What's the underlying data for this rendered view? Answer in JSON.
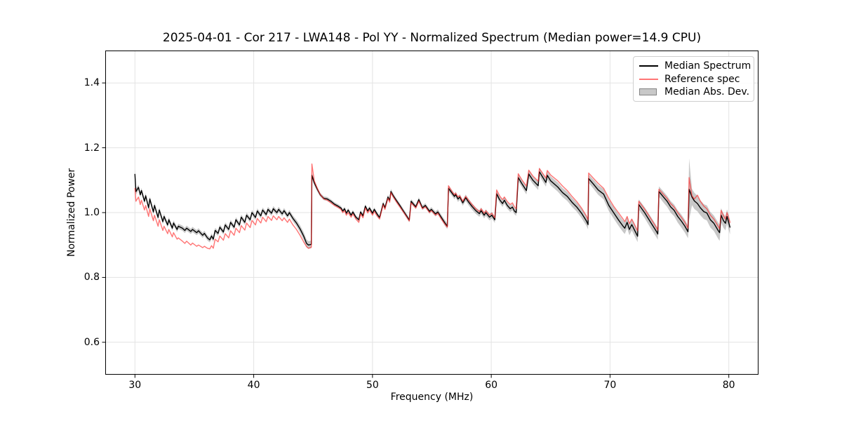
{
  "chart_data": {
    "type": "line",
    "title": "2025-04-01 - Cor 217 - LWA148 - Pol YY - Normalized Spectrum (Median power=14.9 CPU)",
    "xlabel": "Frequency (MHz)",
    "ylabel": "Normalized Power",
    "xlim": [
      27.5,
      82.5
    ],
    "ylim": [
      0.5,
      1.5
    ],
    "x_tick_values": [
      30,
      40,
      50,
      60,
      70,
      80
    ],
    "x_tick_labels": [
      "30",
      "40",
      "50",
      "60",
      "70",
      "80"
    ],
    "y_tick_values": [
      0.6,
      0.8,
      1.0,
      1.2,
      1.4
    ],
    "y_tick_labels": [
      "0.6",
      "0.8",
      "1.0",
      "1.2",
      "1.4"
    ],
    "grid": true,
    "legend_position": "upper right",
    "colors": {
      "median": "#000000",
      "reference": "#ff2b2b",
      "reference_opacity": 0.65,
      "band": "#7d7d7d",
      "band_opacity": 0.42,
      "grid": "#e3e3e3",
      "spine": "#000000"
    },
    "series": [
      {
        "name": "Median Spectrum",
        "kind": "line",
        "column": "median"
      },
      {
        "name": "Reference spec",
        "kind": "line",
        "column": "reference"
      },
      {
        "name": "Median Abs. Dev.",
        "kind": "band",
        "column": "mad"
      }
    ],
    "columns": [
      "freq_mhz",
      "median",
      "reference",
      "mad_halfwidth"
    ],
    "points": [
      [
        30.0,
        1.118,
        1.075,
        0.012
      ],
      [
        30.08,
        1.065,
        1.035,
        0.01
      ],
      [
        30.3,
        1.078,
        1.048,
        0.008
      ],
      [
        30.45,
        1.055,
        1.025,
        0.008
      ],
      [
        30.55,
        1.068,
        1.038,
        0.008
      ],
      [
        30.8,
        1.035,
        1.008,
        0.008
      ],
      [
        30.9,
        1.052,
        1.022,
        0.008
      ],
      [
        31.15,
        1.015,
        0.988,
        0.008
      ],
      [
        31.25,
        1.042,
        1.012,
        0.008
      ],
      [
        31.55,
        1.002,
        0.975,
        0.008
      ],
      [
        31.65,
        1.022,
        0.992,
        0.008
      ],
      [
        31.95,
        0.985,
        0.958,
        0.008
      ],
      [
        32.05,
        1.008,
        0.978,
        0.008
      ],
      [
        32.35,
        0.972,
        0.945,
        0.008
      ],
      [
        32.45,
        0.988,
        0.958,
        0.008
      ],
      [
        32.75,
        0.962,
        0.935,
        0.008
      ],
      [
        32.85,
        0.978,
        0.948,
        0.008
      ],
      [
        33.15,
        0.952,
        0.925,
        0.008
      ],
      [
        33.25,
        0.968,
        0.938,
        0.008
      ],
      [
        33.55,
        0.948,
        0.918,
        0.008
      ],
      [
        33.65,
        0.958,
        0.922,
        0.008
      ],
      [
        34.0,
        0.952,
        0.912,
        0.008
      ],
      [
        34.2,
        0.945,
        0.905,
        0.008
      ],
      [
        34.35,
        0.952,
        0.912,
        0.008
      ],
      [
        34.7,
        0.942,
        0.9,
        0.008
      ],
      [
        34.85,
        0.948,
        0.906,
        0.008
      ],
      [
        35.2,
        0.938,
        0.896,
        0.008
      ],
      [
        35.35,
        0.944,
        0.9,
        0.008
      ],
      [
        35.7,
        0.93,
        0.892,
        0.008
      ],
      [
        35.85,
        0.936,
        0.896,
        0.008
      ],
      [
        36.1,
        0.922,
        0.89,
        0.008
      ],
      [
        36.3,
        0.916,
        0.888,
        0.008
      ],
      [
        36.45,
        0.928,
        0.898,
        0.008
      ],
      [
        36.6,
        0.918,
        0.89,
        0.008
      ],
      [
        36.75,
        0.945,
        0.918,
        0.008
      ],
      [
        37.0,
        0.936,
        0.91,
        0.008
      ],
      [
        37.15,
        0.955,
        0.928,
        0.008
      ],
      [
        37.45,
        0.94,
        0.915,
        0.008
      ],
      [
        37.6,
        0.962,
        0.935,
        0.008
      ],
      [
        37.9,
        0.948,
        0.922,
        0.008
      ],
      [
        38.05,
        0.97,
        0.944,
        0.008
      ],
      [
        38.35,
        0.955,
        0.93,
        0.008
      ],
      [
        38.5,
        0.978,
        0.952,
        0.008
      ],
      [
        38.8,
        0.962,
        0.938,
        0.008
      ],
      [
        38.95,
        0.986,
        0.96,
        0.008
      ],
      [
        39.25,
        0.97,
        0.946,
        0.008
      ],
      [
        39.4,
        0.992,
        0.968,
        0.008
      ],
      [
        39.7,
        0.978,
        0.954,
        0.008
      ],
      [
        39.85,
        1.0,
        0.976,
        0.008
      ],
      [
        40.15,
        0.985,
        0.962,
        0.008
      ],
      [
        40.3,
        1.005,
        0.982,
        0.008
      ],
      [
        40.6,
        0.99,
        0.968,
        0.008
      ],
      [
        40.75,
        1.008,
        0.986,
        0.008
      ],
      [
        41.05,
        0.994,
        0.972,
        0.008
      ],
      [
        41.2,
        1.01,
        0.988,
        0.008
      ],
      [
        41.5,
        0.998,
        0.976,
        0.008
      ],
      [
        41.65,
        1.012,
        0.99,
        0.008
      ],
      [
        41.95,
        1.0,
        0.978,
        0.008
      ],
      [
        42.1,
        1.01,
        0.988,
        0.008
      ],
      [
        42.4,
        0.996,
        0.975,
        0.008
      ],
      [
        42.55,
        1.006,
        0.984,
        0.008
      ],
      [
        42.85,
        0.99,
        0.97,
        0.008
      ],
      [
        43.0,
        1.0,
        0.98,
        0.008
      ],
      [
        43.3,
        0.982,
        0.962,
        0.009
      ],
      [
        43.6,
        0.968,
        0.948,
        0.01
      ],
      [
        43.9,
        0.95,
        0.93,
        0.011
      ],
      [
        44.2,
        0.928,
        0.91,
        0.012
      ],
      [
        44.45,
        0.905,
        0.895,
        0.012
      ],
      [
        44.6,
        0.9,
        0.89,
        0.012
      ],
      [
        44.85,
        0.902,
        0.893,
        0.012
      ],
      [
        44.9,
        1.115,
        1.15,
        0.01
      ],
      [
        45.1,
        1.092,
        1.098,
        0.008
      ],
      [
        45.35,
        1.072,
        1.075,
        0.007
      ],
      [
        45.6,
        1.055,
        1.056,
        0.006
      ],
      [
        45.9,
        1.044,
        1.042,
        0.006
      ],
      [
        46.2,
        1.042,
        1.038,
        0.006
      ],
      [
        46.5,
        1.035,
        1.03,
        0.006
      ],
      [
        46.8,
        1.026,
        1.022,
        0.006
      ],
      [
        47.1,
        1.02,
        1.016,
        0.006
      ],
      [
        47.35,
        1.014,
        1.01,
        0.006
      ],
      [
        47.5,
        1.005,
        1.0,
        0.006
      ],
      [
        47.65,
        1.012,
        1.006,
        0.006
      ],
      [
        47.8,
        0.998,
        0.992,
        0.006
      ],
      [
        47.95,
        1.008,
        1.0,
        0.006
      ],
      [
        48.2,
        0.992,
        0.986,
        0.006
      ],
      [
        48.35,
        1.002,
        0.996,
        0.006
      ],
      [
        48.6,
        0.986,
        0.98,
        0.006
      ],
      [
        48.85,
        0.978,
        0.97,
        0.006
      ],
      [
        49.0,
        1.002,
        0.996,
        0.006
      ],
      [
        49.2,
        0.99,
        0.984,
        0.006
      ],
      [
        49.4,
        1.02,
        1.014,
        0.006
      ],
      [
        49.6,
        1.005,
        0.999,
        0.006
      ],
      [
        49.75,
        1.014,
        1.008,
        0.006
      ],
      [
        50.0,
        0.998,
        0.992,
        0.006
      ],
      [
        50.15,
        1.01,
        1.004,
        0.006
      ],
      [
        50.4,
        0.995,
        0.989,
        0.006
      ],
      [
        50.6,
        0.985,
        0.98,
        0.006
      ],
      [
        50.9,
        1.028,
        1.024,
        0.006
      ],
      [
        51.05,
        1.015,
        1.01,
        0.006
      ],
      [
        51.3,
        1.048,
        1.044,
        0.007
      ],
      [
        51.45,
        1.038,
        1.032,
        0.007
      ],
      [
        51.55,
        1.065,
        1.062,
        0.008
      ],
      [
        51.75,
        1.052,
        1.048,
        0.007
      ],
      [
        52.0,
        1.038,
        1.034,
        0.007
      ],
      [
        52.3,
        1.022,
        1.018,
        0.007
      ],
      [
        52.6,
        1.005,
        1.002,
        0.007
      ],
      [
        52.9,
        0.988,
        0.985,
        0.007
      ],
      [
        53.1,
        0.977,
        0.974,
        0.007
      ],
      [
        53.25,
        1.035,
        1.03,
        0.007
      ],
      [
        53.5,
        1.024,
        1.02,
        0.007
      ],
      [
        53.65,
        1.018,
        1.014,
        0.007
      ],
      [
        53.9,
        1.04,
        1.035,
        0.007
      ],
      [
        54.2,
        1.015,
        1.012,
        0.007
      ],
      [
        54.45,
        1.022,
        1.018,
        0.007
      ],
      [
        54.8,
        1.004,
        1.0,
        0.007
      ],
      [
        54.95,
        1.01,
        1.006,
        0.007
      ],
      [
        55.3,
        0.996,
        0.992,
        0.008
      ],
      [
        55.5,
        1.002,
        0.998,
        0.008
      ],
      [
        55.8,
        0.985,
        0.98,
        0.008
      ],
      [
        56.1,
        0.968,
        0.964,
        0.009
      ],
      [
        56.3,
        0.958,
        0.955,
        0.009
      ],
      [
        56.4,
        1.075,
        1.083,
        0.009
      ],
      [
        56.7,
        1.06,
        1.065,
        0.009
      ],
      [
        56.9,
        1.05,
        1.055,
        0.009
      ],
      [
        57.0,
        1.056,
        1.06,
        0.009
      ],
      [
        57.2,
        1.042,
        1.048,
        0.009
      ],
      [
        57.35,
        1.048,
        1.052,
        0.009
      ],
      [
        57.6,
        1.03,
        1.035,
        0.009
      ],
      [
        57.85,
        1.046,
        1.05,
        0.01
      ],
      [
        58.1,
        1.032,
        1.038,
        0.01
      ],
      [
        58.4,
        1.018,
        1.024,
        0.01
      ],
      [
        58.7,
        1.006,
        1.012,
        0.01
      ],
      [
        59.0,
        0.997,
        1.003,
        0.01
      ],
      [
        59.15,
        1.006,
        1.012,
        0.01
      ],
      [
        59.4,
        0.992,
        0.998,
        0.01
      ],
      [
        59.55,
        1.0,
        1.006,
        0.01
      ],
      [
        59.85,
        0.986,
        0.992,
        0.01
      ],
      [
        60.05,
        0.992,
        0.998,
        0.01
      ],
      [
        60.3,
        0.978,
        0.984,
        0.01
      ],
      [
        60.45,
        1.058,
        1.07,
        0.01
      ],
      [
        60.7,
        1.04,
        1.052,
        0.01
      ],
      [
        60.95,
        1.028,
        1.04,
        0.01
      ],
      [
        61.1,
        1.038,
        1.048,
        0.01
      ],
      [
        61.35,
        1.022,
        1.034,
        0.01
      ],
      [
        61.6,
        1.012,
        1.025,
        0.01
      ],
      [
        61.78,
        1.017,
        1.03,
        0.01
      ],
      [
        61.95,
        1.005,
        1.018,
        0.01
      ],
      [
        62.1,
        1.0,
        1.012,
        0.01
      ],
      [
        62.27,
        1.108,
        1.12,
        0.011
      ],
      [
        62.6,
        1.088,
        1.1,
        0.011
      ],
      [
        62.96,
        1.068,
        1.082,
        0.012
      ],
      [
        63.16,
        1.119,
        1.131,
        0.012
      ],
      [
        63.5,
        1.1,
        1.113,
        0.012
      ],
      [
        63.95,
        1.083,
        1.097,
        0.013
      ],
      [
        64.05,
        1.126,
        1.136,
        0.013
      ],
      [
        64.35,
        1.108,
        1.12,
        0.013
      ],
      [
        64.6,
        1.093,
        1.107,
        0.013
      ],
      [
        64.72,
        1.115,
        1.13,
        0.013
      ],
      [
        65.0,
        1.098,
        1.116,
        0.014
      ],
      [
        65.6,
        1.079,
        1.098,
        0.014
      ],
      [
        66.0,
        1.062,
        1.082,
        0.014
      ],
      [
        66.4,
        1.05,
        1.068,
        0.014
      ],
      [
        66.8,
        1.032,
        1.05,
        0.014
      ],
      [
        67.2,
        1.017,
        1.034,
        0.014
      ],
      [
        67.6,
        0.998,
        1.014,
        0.015
      ],
      [
        68.0,
        0.975,
        0.99,
        0.015
      ],
      [
        68.15,
        0.963,
        0.978,
        0.015
      ],
      [
        68.2,
        1.105,
        1.122,
        0.013
      ],
      [
        68.6,
        1.088,
        1.106,
        0.014
      ],
      [
        69.0,
        1.07,
        1.09,
        0.015
      ],
      [
        69.46,
        1.057,
        1.075,
        0.016
      ],
      [
        69.9,
        1.022,
        1.044,
        0.017
      ],
      [
        70.3,
        1.0,
        1.02,
        0.018
      ],
      [
        70.7,
        0.978,
        1.0,
        0.018
      ],
      [
        71.1,
        0.958,
        0.98,
        0.018
      ],
      [
        71.24,
        0.952,
        0.972,
        0.018
      ],
      [
        71.44,
        0.97,
        0.988,
        0.018
      ],
      [
        71.63,
        0.948,
        0.966,
        0.018
      ],
      [
        71.83,
        0.963,
        0.98,
        0.018
      ],
      [
        72.13,
        0.941,
        0.958,
        0.018
      ],
      [
        72.32,
        0.927,
        0.944,
        0.018
      ],
      [
        72.42,
        1.025,
        1.035,
        0.016
      ],
      [
        72.93,
        0.999,
        1.01,
        0.017
      ],
      [
        73.42,
        0.97,
        0.982,
        0.018
      ],
      [
        73.92,
        0.941,
        0.953,
        0.018
      ],
      [
        74.02,
        0.934,
        0.946,
        0.018
      ],
      [
        74.12,
        1.065,
        1.072,
        0.016
      ],
      [
        74.5,
        1.048,
        1.056,
        0.017
      ],
      [
        74.8,
        1.035,
        1.044,
        0.017
      ],
      [
        75.1,
        1.018,
        1.028,
        0.018
      ],
      [
        75.4,
        1.007,
        1.017,
        0.018
      ],
      [
        75.7,
        0.988,
        1.0,
        0.019
      ],
      [
        76.0,
        0.974,
        0.986,
        0.02
      ],
      [
        76.3,
        0.958,
        0.97,
        0.02
      ],
      [
        76.56,
        0.941,
        0.952,
        0.02
      ],
      [
        76.66,
        1.072,
        1.108,
        0.095
      ],
      [
        76.9,
        1.048,
        1.052,
        0.025
      ],
      [
        77.1,
        1.036,
        1.042,
        0.025
      ],
      [
        77.36,
        1.028,
        1.054,
        0.024
      ],
      [
        77.6,
        1.015,
        1.035,
        0.023
      ],
      [
        77.9,
        1.003,
        1.02,
        0.023
      ],
      [
        78.15,
        0.999,
        1.012,
        0.023
      ],
      [
        78.45,
        0.978,
        0.992,
        0.024
      ],
      [
        78.74,
        0.967,
        0.98,
        0.024
      ],
      [
        79.1,
        0.945,
        0.958,
        0.025
      ],
      [
        79.23,
        0.938,
        0.95,
        0.025
      ],
      [
        79.35,
        0.992,
        1.007,
        0.022
      ],
      [
        79.55,
        0.975,
        0.99,
        0.022
      ],
      [
        79.72,
        0.967,
        0.98,
        0.022
      ],
      [
        79.85,
        0.988,
        1.0,
        0.022
      ],
      [
        80.0,
        0.968,
        0.982,
        0.022
      ],
      [
        80.1,
        0.955,
        0.97,
        0.022
      ]
    ]
  }
}
